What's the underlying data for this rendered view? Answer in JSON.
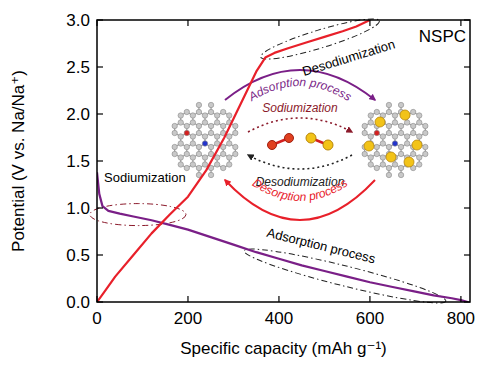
{
  "chart_data": {
    "type": "line",
    "xlabel": "Specific capacity (mAh g⁻¹)",
    "ylabel": "Potential (V vs. Na/Na⁺)",
    "xlim": [
      0,
      820
    ],
    "ylim": [
      0,
      3
    ],
    "xticks": [
      0,
      200,
      400,
      600,
      800
    ],
    "yticks": [
      {
        "value": 0,
        "label": "0.0"
      },
      {
        "value": 0.5,
        "label": "0.5"
      },
      {
        "value": 1,
        "label": "1.0"
      },
      {
        "value": 1.5,
        "label": "1.5"
      },
      {
        "value": 2,
        "label": "2.0"
      },
      {
        "value": 2.5,
        "label": "2.5"
      },
      {
        "value": 3,
        "label": "3.0"
      }
    ],
    "grid": false,
    "series": [
      {
        "color": "#7a1f87",
        "x": [
          0,
          5,
          12,
          25,
          50,
          80,
          120,
          160,
          200,
          250,
          300,
          350,
          400,
          450,
          500,
          550,
          600,
          650,
          700,
          740,
          780,
          800,
          815
        ],
        "values": [
          1.38,
          1.15,
          1.02,
          0.97,
          0.94,
          0.91,
          0.87,
          0.82,
          0.77,
          0.69,
          0.61,
          0.53,
          0.46,
          0.39,
          0.33,
          0.27,
          0.21,
          0.16,
          0.11,
          0.07,
          0.04,
          0.02,
          0.0
        ]
      },
      {
        "color": "#e8202a",
        "x": [
          0,
          15,
          40,
          80,
          120,
          160,
          200,
          240,
          280,
          320,
          350,
          370,
          390,
          420,
          460,
          500,
          540,
          570,
          600
        ],
        "values": [
          0.0,
          0.1,
          0.27,
          0.5,
          0.73,
          0.93,
          1.12,
          1.4,
          1.75,
          2.15,
          2.45,
          2.6,
          2.65,
          2.7,
          2.76,
          2.82,
          2.88,
          2.93,
          3.0
        ]
      }
    ],
    "annotations": [
      "NSPC",
      "Desodiumization",
      "Sodiumization",
      "Adsorption process",
      "Sodiumization",
      "Desodiumization",
      "Adsorption process",
      "Desorption process"
    ]
  }
}
